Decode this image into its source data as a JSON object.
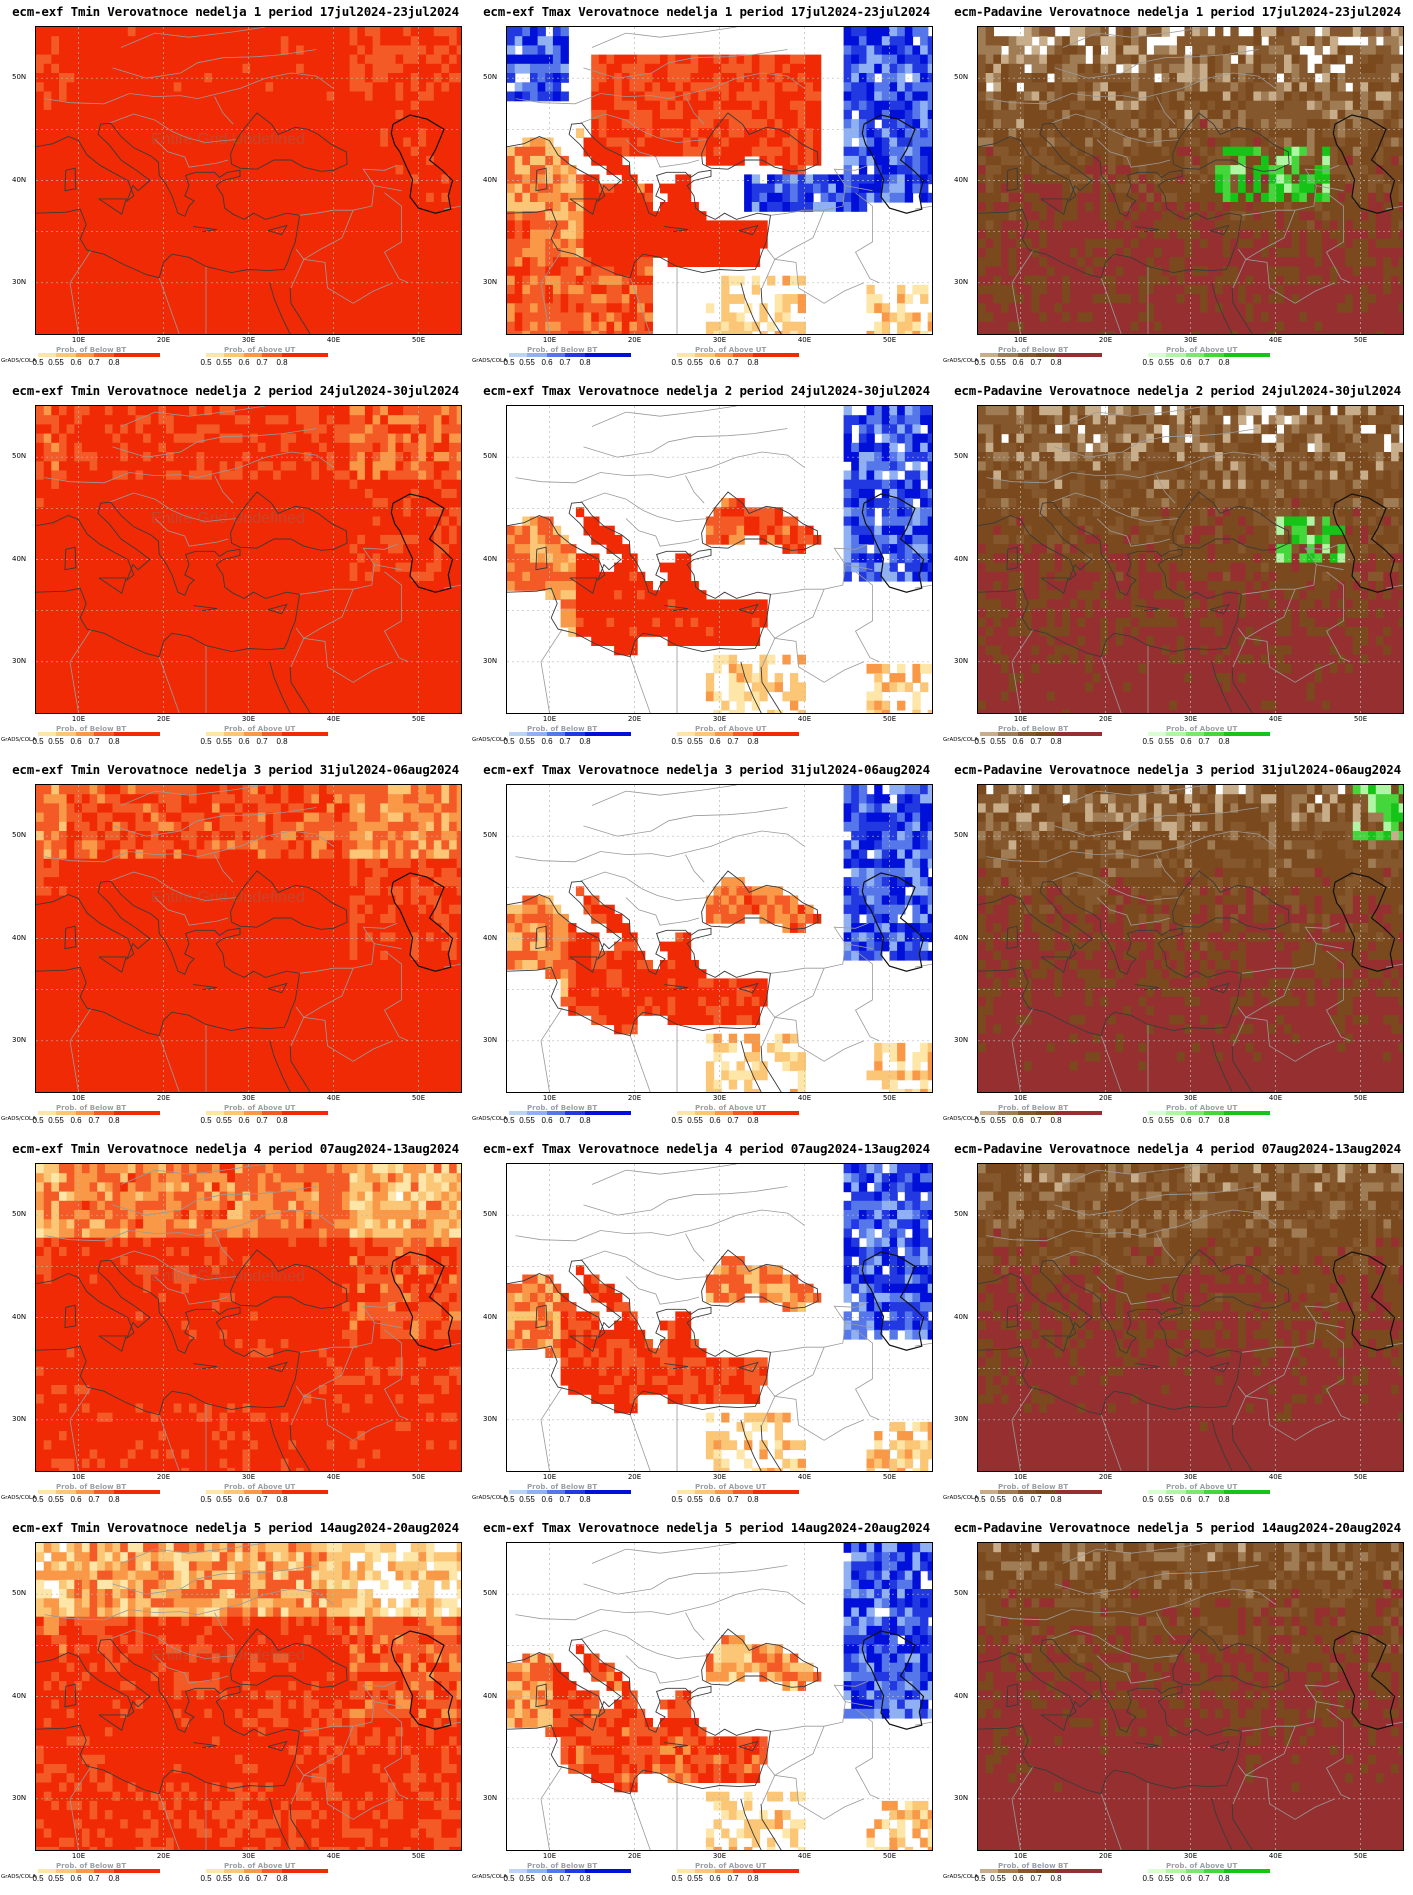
{
  "panels": [
    {
      "title": "ecm-exf Tmin Verovatnoce nedelja 1 period 17jul2024-23jul2024",
      "var": "Tmin",
      "week": 1,
      "watermark": true
    },
    {
      "title": "ecm-exf Tmax Verovatnoce nedelja 1 period 17jul2024-23jul2024",
      "var": "Tmax",
      "week": 1,
      "watermark": false
    },
    {
      "title": "ecm-Padavine Verovatnoce nedelja 1 period 17jul2024-23jul2024",
      "var": "Padavine",
      "week": 1,
      "watermark": false
    },
    {
      "title": "ecm-exf Tmin Verovatnoce nedelja 2 period 24jul2024-30jul2024",
      "var": "Tmin",
      "week": 2,
      "watermark": true
    },
    {
      "title": "ecm-exf Tmax Verovatnoce nedelja 2 period 24jul2024-30jul2024",
      "var": "Tmax",
      "week": 2,
      "watermark": false
    },
    {
      "title": "ecm-Padavine Verovatnoce nedelja 2 period 24jul2024-30jul2024",
      "var": "Padavine",
      "week": 2,
      "watermark": false
    },
    {
      "title": "ecm-exf Tmin Verovatnoce nedelja 3 period 31jul2024-06aug2024",
      "var": "Tmin",
      "week": 3,
      "watermark": true
    },
    {
      "title": "ecm-exf Tmax Verovatnoce nedelja 3 period 31jul2024-06aug2024",
      "var": "Tmax",
      "week": 3,
      "watermark": false
    },
    {
      "title": "ecm-Padavine Verovatnoce nedelja 3 period 31jul2024-06aug2024",
      "var": "Padavine",
      "week": 3,
      "watermark": false
    },
    {
      "title": "ecm-exf Tmin Verovatnoce nedelja 4 period 07aug2024-13aug2024",
      "var": "Tmin",
      "week": 4,
      "watermark": true
    },
    {
      "title": "ecm-exf Tmax Verovatnoce nedelja 4 period 07aug2024-13aug2024",
      "var": "Tmax",
      "week": 4,
      "watermark": false
    },
    {
      "title": "ecm-Padavine Verovatnoce nedelja 4 period 07aug2024-13aug2024",
      "var": "Padavine",
      "week": 4,
      "watermark": false
    },
    {
      "title": "ecm-exf Tmin Verovatnoce nedelja 5 period 14aug2024-20aug2024",
      "var": "Tmin",
      "week": 5,
      "watermark": true
    },
    {
      "title": "ecm-exf Tmax Verovatnoce nedelja 5 period 14aug2024-20aug2024",
      "var": "Tmax",
      "week": 5,
      "watermark": false
    },
    {
      "title": "ecm-Padavine Verovatnoce nedelja 5 period 14aug2024-20aug2024",
      "var": "Padavine",
      "week": 5,
      "watermark": false
    }
  ],
  "watermark_text": "Entire Grid Undefined",
  "lat_labels": [
    "50N",
    "40N",
    "30N"
  ],
  "lon_labels": [
    "10E",
    "20E",
    "30E",
    "40E",
    "50E"
  ],
  "credit": "GrADS/COLA",
  "colorbars": {
    "below": {
      "title": "Prob. of Below BT",
      "ticks": [
        "0.5",
        "0.55",
        "0.6",
        "0.7",
        "0.8"
      ]
    },
    "above": {
      "title": "Prob. of Above UT",
      "ticks": [
        "0.5",
        "0.55",
        "0.6",
        "0.7",
        "0.8"
      ]
    }
  },
  "palettes": {
    "below_blue": [
      "#bcd3f5",
      "#8fb0f2",
      "#5577ea",
      "#2238e0",
      "#0010d8"
    ],
    "above_red": [
      "#fde6a8",
      "#fbc777",
      "#f99846",
      "#f45a26",
      "#f02a05"
    ],
    "below_brown": [
      "#c8ad8a",
      "#a07c55",
      "#85572c",
      "#7a4a1e",
      "#963030"
    ],
    "above_green": [
      "#d8ffd0",
      "#b0f5a4",
      "#7ae86c",
      "#44d63a",
      "#16c418"
    ],
    "grid_line": "#b8b8b8",
    "border": "#9a9a9a"
  }
}
